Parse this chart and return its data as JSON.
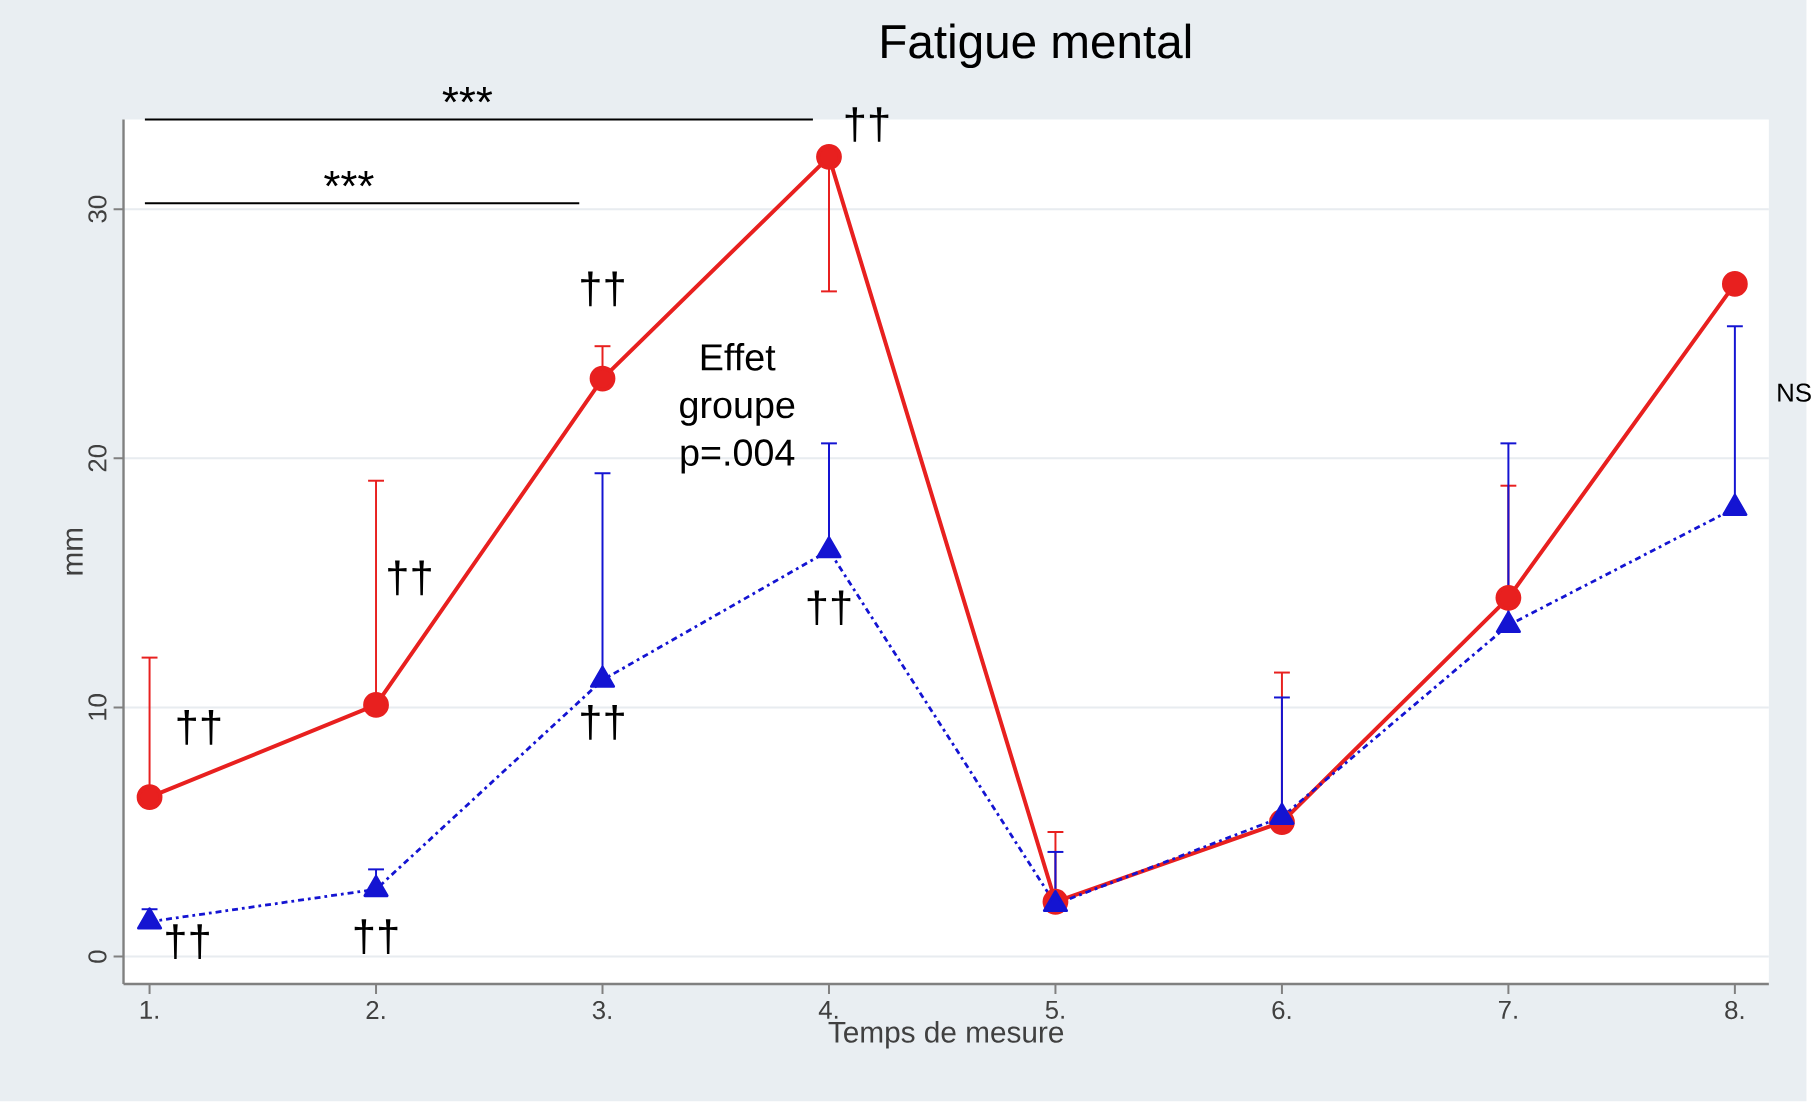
{
  "chart_data": {
    "type": "line",
    "title": "Fatigue mental",
    "xlabel": "Temps de mesure",
    "ylabel": "mm",
    "categories": [
      "1.",
      "2.",
      "3.",
      "4.",
      "5.",
      "6.",
      "7.",
      "8."
    ],
    "series": [
      {
        "color": "#e8201f",
        "marker": "circle",
        "line_style": "solid",
        "values": [
          6.4,
          10.1,
          23.2,
          32.1,
          2.2,
          5.4,
          14.4,
          27.0
        ],
        "errors": [
          [
            6.4,
            12.0
          ],
          [
            10.1,
            19.1
          ],
          [
            23.2,
            24.5
          ],
          [
            26.7,
            32.1
          ],
          [
            2.2,
            5.0
          ],
          [
            5.4,
            11.4
          ],
          [
            14.4,
            18.9
          ],
          null
        ]
      },
      {
        "color": "#1414d2",
        "marker": "triangle",
        "line_style": "dotted",
        "values": [
          1.4,
          2.7,
          11.1,
          16.3,
          2.1,
          5.6,
          13.3,
          18.0
        ],
        "errors": [
          [
            1.4,
            1.9
          ],
          [
            2.7,
            3.5
          ],
          [
            11.1,
            19.4
          ],
          [
            16.3,
            20.6
          ],
          [
            2.1,
            4.2
          ],
          [
            5.6,
            10.4
          ],
          [
            13.3,
            20.6
          ],
          [
            18.0,
            25.3
          ]
        ]
      }
    ],
    "ylim": [
      -1.1,
      33.6
    ],
    "yticks": [
      0,
      10,
      20,
      30
    ],
    "grid": "y",
    "annotations": [
      "***",
      "***",
      "Effet groupe p=.004",
      "NS",
      "††",
      "††",
      "††",
      "††",
      "††",
      "††",
      "††",
      "††"
    ]
  }
}
